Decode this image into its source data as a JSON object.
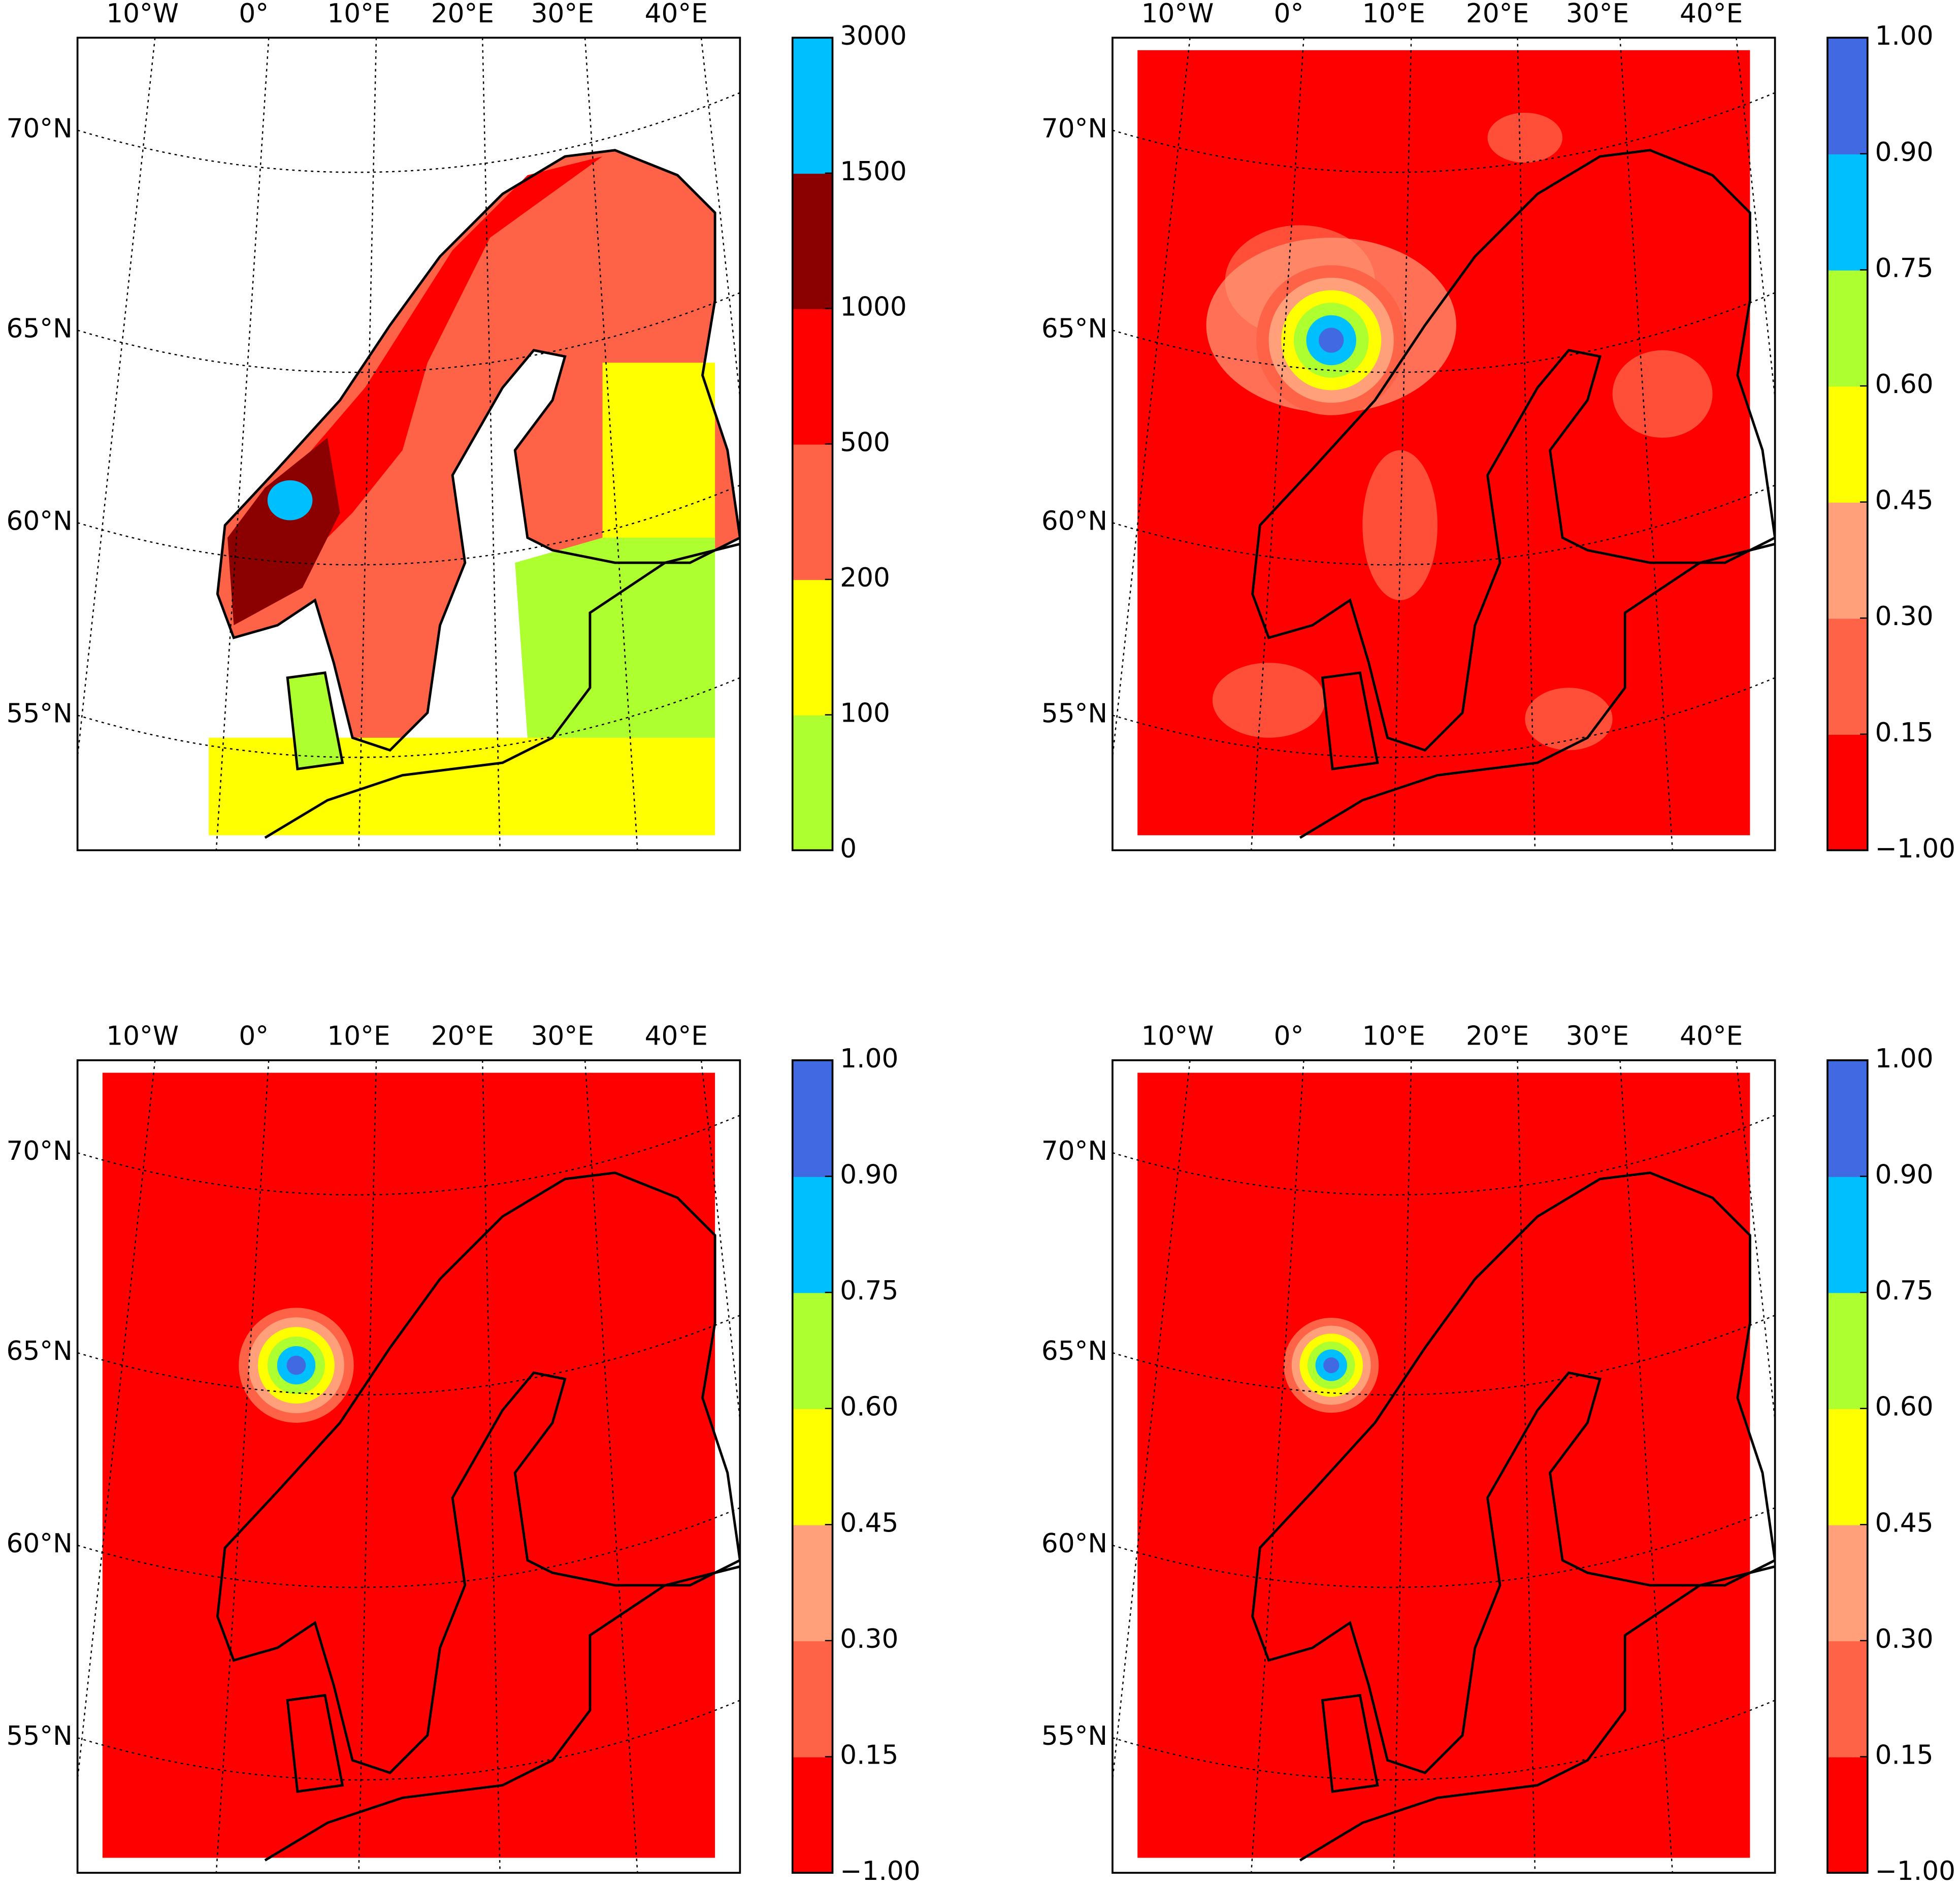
{
  "panels": [
    {
      "lon_labels": [
        "10°W",
        "0°",
        "10°E",
        "20°E",
        "30°E",
        "40°E"
      ],
      "lat_labels": [
        "70°N",
        "65°N",
        "60°N",
        "55°N"
      ],
      "colorbar": {
        "labels": [
          "0",
          "100",
          "200",
          "500",
          "1000",
          "1500",
          "3000"
        ],
        "colors": [
          "#adff2f",
          "#ffff00",
          "#ff6347",
          "#ff0000",
          "#8b0000",
          "#00bfff"
        ]
      }
    },
    {
      "lon_labels": [
        "10°W",
        "0°",
        "10°E",
        "20°E",
        "30°E",
        "40°E"
      ],
      "lat_labels": [
        "70°N",
        "65°N",
        "60°N",
        "55°N"
      ],
      "colorbar": {
        "labels": [
          "−1.00",
          "0.15",
          "0.30",
          "0.45",
          "0.60",
          "0.75",
          "0.90",
          "1.00"
        ],
        "colors": [
          "#ff0000",
          "#ff6347",
          "#ffa07a",
          "#ffff00",
          "#adff2f",
          "#00bfff",
          "#4169e1"
        ]
      }
    },
    {
      "lon_labels": [
        "10°W",
        "0°",
        "10°E",
        "20°E",
        "30°E",
        "40°E"
      ],
      "lat_labels": [
        "70°N",
        "65°N",
        "60°N",
        "55°N"
      ],
      "colorbar": {
        "labels": [
          "−1.00",
          "0.15",
          "0.30",
          "0.45",
          "0.60",
          "0.75",
          "0.90",
          "1.00"
        ],
        "colors": [
          "#ff0000",
          "#ff6347",
          "#ffa07a",
          "#ffff00",
          "#adff2f",
          "#00bfff",
          "#4169e1"
        ]
      }
    },
    {
      "lon_labels": [
        "10°W",
        "0°",
        "10°E",
        "20°E",
        "30°E",
        "40°E"
      ],
      "lat_labels": [
        "70°N",
        "65°N",
        "60°N",
        "55°N"
      ],
      "colorbar": {
        "labels": [
          "−1.00",
          "0.15",
          "0.30",
          "0.45",
          "0.60",
          "0.75",
          "0.90",
          "1.00"
        ],
        "colors": [
          "#ff0000",
          "#ff6347",
          "#ffa07a",
          "#ffff00",
          "#adff2f",
          "#00bfff",
          "#4169e1"
        ]
      }
    }
  ]
}
